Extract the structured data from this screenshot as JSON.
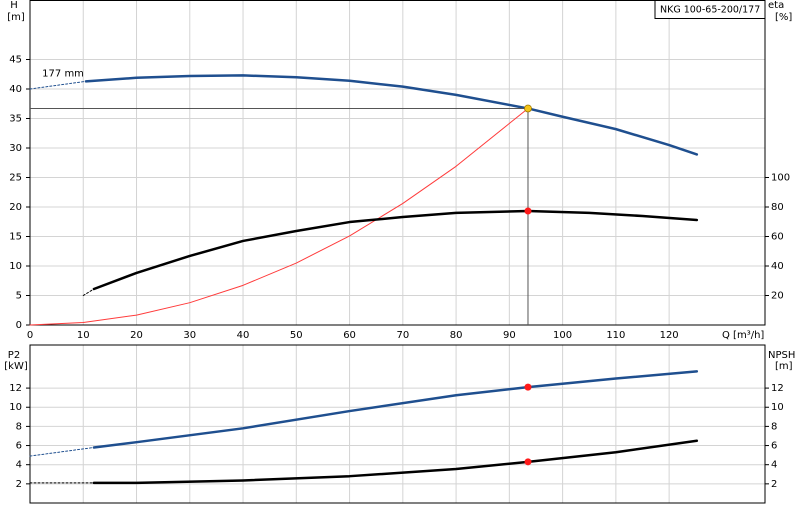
{
  "chart_data": [
    {
      "type": "line",
      "title": "NKG 100-65-200/177",
      "ylabel": "H",
      "yunit": "[m]",
      "y2label": "eta",
      "y2unit": "[%]",
      "xlabel": "Q [m³/h]",
      "xlim": [
        0,
        138
      ],
      "xticks": [
        0,
        10,
        20,
        30,
        40,
        50,
        60,
        70,
        80,
        90,
        100,
        110,
        120
      ],
      "ylim": [
        0,
        55
      ],
      "yticks": [
        0,
        5,
        10,
        15,
        20,
        25,
        30,
        35,
        40,
        45
      ],
      "y2lim": [
        0,
        220
      ],
      "y2ticks": [
        20,
        40,
        60,
        80,
        100
      ],
      "grid": true,
      "series": [
        {
          "color": "#1f4f8f",
          "dash": true,
          "x": [
            0,
            10.5
          ],
          "values": [
            40,
            41.3
          ]
        },
        {
          "name": "177 mm",
          "color": "#1f4f8f",
          "x": [
            10.5,
            20,
            30,
            40,
            50,
            60,
            70,
            80,
            90,
            93.5,
            100,
            110,
            120,
            125.2
          ],
          "values": [
            41.3,
            41.9,
            42.2,
            42.3,
            42.0,
            41.4,
            40.4,
            39.0,
            37.3,
            36.7,
            35.3,
            33.2,
            30.5,
            28.9
          ]
        },
        {
          "color": "#ff3b3b",
          "thin": true,
          "x": [
            0,
            10,
            20,
            30,
            40,
            50,
            60,
            70,
            80,
            93.5
          ],
          "values": [
            0,
            0.42,
            1.68,
            3.78,
            6.72,
            10.5,
            15.1,
            20.6,
            26.9,
            36.7
          ]
        },
        {
          "color": "#000000",
          "dash": true,
          "axis": "y2",
          "x": [
            10,
            12
          ],
          "values": [
            20,
            24.4
          ]
        },
        {
          "color": "#000000",
          "axis": "y2",
          "x": [
            12,
            20,
            30,
            40,
            50,
            60,
            70,
            80,
            93.5,
            105,
            115,
            125.2
          ],
          "values": [
            24.4,
            35.3,
            46.8,
            57,
            63.7,
            69.8,
            73.2,
            76,
            77.3,
            76,
            73.9,
            71.2
          ]
        }
      ],
      "points": [
        {
          "x": 93.5,
          "y": 36.7,
          "color": "#f5c518",
          "guides": true
        },
        {
          "x": 93.5,
          "y": 77.3,
          "axis": "y2",
          "color": "#ff1a1a"
        }
      ]
    },
    {
      "type": "line",
      "ylabel": "P2",
      "yunit": "[kW]",
      "y2label": "NPSH",
      "y2unit": "[m]",
      "xlim": [
        0,
        138
      ],
      "xticks": [
        0,
        10,
        20,
        30,
        40,
        50,
        60,
        70,
        80,
        90,
        100,
        110,
        120
      ],
      "ylim": [
        0,
        16.5
      ],
      "yticks": [
        2,
        4,
        6,
        8,
        10,
        12
      ],
      "y2lim": [
        0,
        16.5
      ],
      "y2ticks": [
        2,
        4,
        6,
        8,
        10,
        12
      ],
      "grid": true,
      "series": [
        {
          "color": "#1f4f8f",
          "dash": true,
          "x": [
            0,
            12
          ],
          "values": [
            4.9,
            5.8
          ]
        },
        {
          "color": "#1f4f8f",
          "x": [
            12,
            20,
            40,
            60,
            80,
            93.5,
            110,
            125.2
          ],
          "values": [
            5.8,
            6.35,
            7.8,
            9.6,
            11.25,
            12.1,
            13.0,
            13.75
          ]
        },
        {
          "color": "#000000",
          "dash": true,
          "axis": "y2",
          "x": [
            0,
            12
          ],
          "values": [
            2.1,
            2.1
          ]
        },
        {
          "color": "#000000",
          "axis": "y2",
          "x": [
            12,
            20,
            40,
            60,
            80,
            93.5,
            110,
            125.2
          ],
          "values": [
            2.1,
            2.1,
            2.35,
            2.8,
            3.55,
            4.3,
            5.3,
            6.5
          ]
        }
      ],
      "points": [
        {
          "x": 93.5,
          "y": 12.1,
          "color": "#ff1a1a"
        },
        {
          "x": 93.5,
          "y": 4.3,
          "axis": "y2",
          "color": "#ff1a1a"
        }
      ]
    }
  ]
}
